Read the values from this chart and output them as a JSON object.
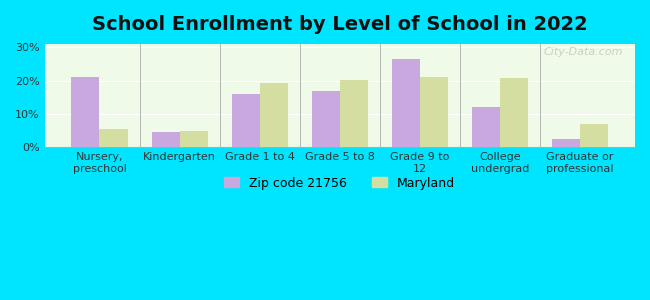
{
  "title": "School Enrollment by Level of School in 2022",
  "categories": [
    "Nursery,\npreschool",
    "Kindergarten",
    "Grade 1 to 4",
    "Grade 5 to 8",
    "Grade 9 to\n12",
    "College\nundergrad",
    "Graduate or\nprofessional"
  ],
  "zip_values": [
    21.0,
    4.5,
    16.0,
    17.0,
    26.5,
    12.0,
    2.5
  ],
  "maryland_values": [
    5.5,
    4.8,
    19.3,
    20.3,
    21.2,
    20.7,
    6.8
  ],
  "zip_color": "#c9a8e0",
  "maryland_color": "#d4dea0",
  "background_outer": "#00e5ff",
  "background_inner": "#f0fae8",
  "ylim": [
    0,
    31
  ],
  "yticks": [
    0,
    10,
    20,
    30
  ],
  "ytick_labels": [
    "0%",
    "10%",
    "20%",
    "30%"
  ],
  "legend_label_zip": "Zip code 21756",
  "legend_label_maryland": "Maryland",
  "bar_width": 0.35,
  "title_fontsize": 14,
  "tick_fontsize": 8,
  "legend_fontsize": 9,
  "watermark": "City-Data.com"
}
